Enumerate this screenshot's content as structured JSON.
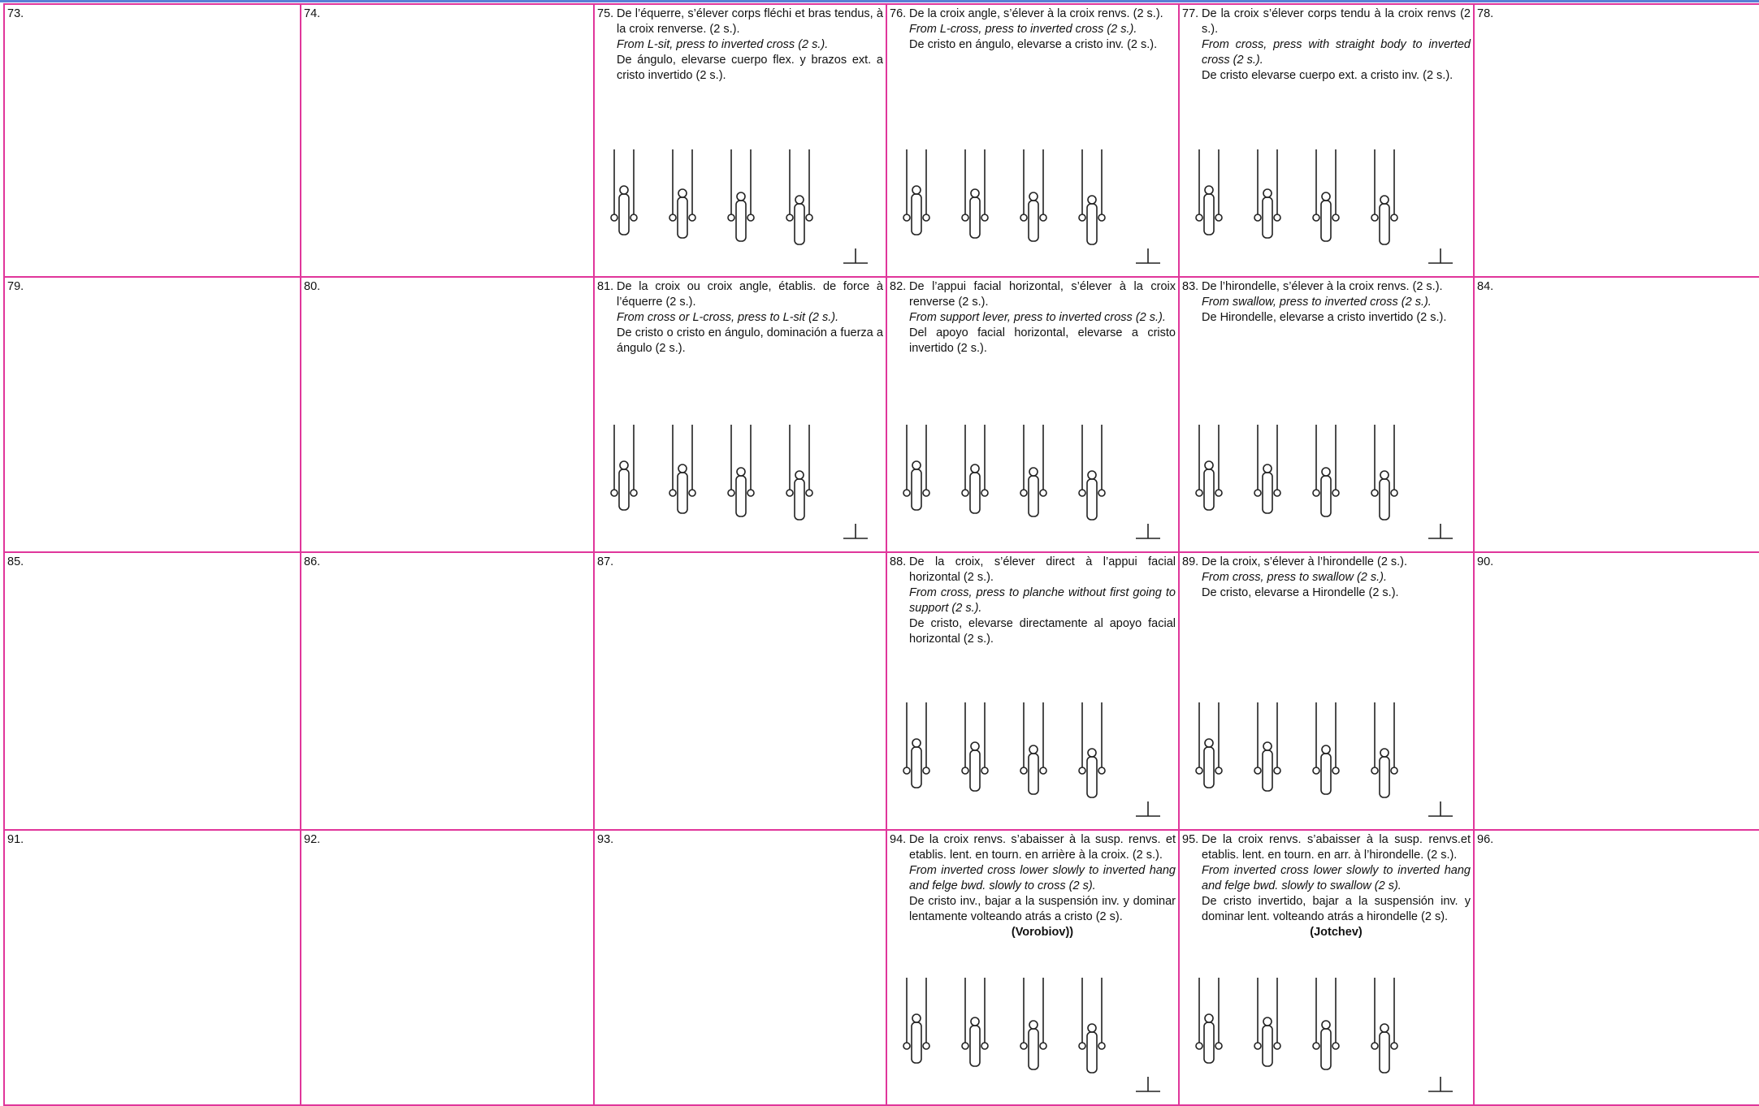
{
  "rows": [
    [
      {
        "number": "73."
      },
      {
        "number": "74."
      },
      {
        "number": "75.",
        "fr": "De l’équerre, s’élever corps fléchi et bras tendus, à la croix renverse. (2 s.).",
        "en": "From L-sit, press to inverted cross (2 s.).",
        "es": "De ángulo, elevarse cuerpo flex. y brazos ext. a cristo invertido (2 s.)."
      },
      {
        "number": "76.",
        "fr": "De la croix angle, s’élever à la croix renvs. (2 s.).",
        "en": "From L-cross, press to inverted cross (2 s.).",
        "es": "De cristo en ángulo, elevarse a cristo inv. (2 s.)."
      },
      {
        "number": "77.",
        "fr": "De la croix s’élever corps tendu à la croix renvs (2 s.).",
        "en": "From cross, press with straight body to inverted cross (2 s.).",
        "es": "De cristo elevarse cuerpo ext. a cristo inv. (2 s.)."
      },
      {
        "number": "78."
      }
    ],
    [
      {
        "number": "79."
      },
      {
        "number": "80."
      },
      {
        "number": "81.",
        "fr": "De la croix ou croix angle, établis. de force à l’équerre (2 s.).",
        "en": "From cross or L-cross, press to L-sit (2 s.).",
        "es": "De cristo o cristo en ángulo, dominación a fuerza a ángulo (2 s.)."
      },
      {
        "number": "82.",
        "fr": "De l’appui facial horizontal, s’élever à la croix renverse (2 s.).",
        "en": "From support lever, press to  inverted cross (2 s.).",
        "es": "Del apoyo facial horizontal, elevarse a cristo invertido (2 s.)."
      },
      {
        "number": "83.",
        "fr": "De l’hirondelle, s’élever à la croix renvs. (2 s.).",
        "en": "From swallow, press to inverted cross (2 s.).",
        "es": "De Hirondelle, elevarse a cristo invertido (2 s.)."
      },
      {
        "number": "84."
      }
    ],
    [
      {
        "number": "85."
      },
      {
        "number": "86."
      },
      {
        "number": "87."
      },
      {
        "number": "88.",
        "fr": "De la croix, s’élever direct à l’appui facial horizontal (2 s.).",
        "en": "From cross, press to planche without first going to support (2 s.).",
        "es": "De cristo, elevarse directamente al apoyo facial horizontal (2 s.)."
      },
      {
        "number": "89.",
        "fr": "De la croix, s’élever à l’hirondelle (2 s.).",
        "en": "From cross, press to swallow (2 s.).",
        "es": "De cristo, elevarse a Hirondelle (2 s.)."
      },
      {
        "number": "90."
      }
    ],
    [
      {
        "number": "91."
      },
      {
        "number": "92."
      },
      {
        "number": "93."
      },
      {
        "number": "94.",
        "fr": "De la croix renvs. s’abaisser à la susp. renvs. et etablis. lent. en tourn. en arrière à la croix. (2 s.).",
        "en": "From inverted cross lower slowly to inverted hang and felge bwd. slowly to cross (2 s).",
        "es": "De cristo inv., bajar a la suspensión inv. y dominar lentamente volteando atrás a cristo (2 s).",
        "name": "(Vorobiov))"
      },
      {
        "number": "95.",
        "fr": "De la croix renvs. s’abaisser à la susp. renvs.et etablis. lent. en tourn. en arr. à l’hirondelle. (2 s.).",
        "en": "From inverted cross lower slowly to inverted hang and felge bwd. slowly to swallow (2 s).",
        "es": "De cristo invertido, bajar a la suspensión inv. y dominar lent. volteando atrás a hirondelle (2 s).",
        "name": "(Jotchev)"
      },
      {
        "number": "96."
      }
    ]
  ]
}
